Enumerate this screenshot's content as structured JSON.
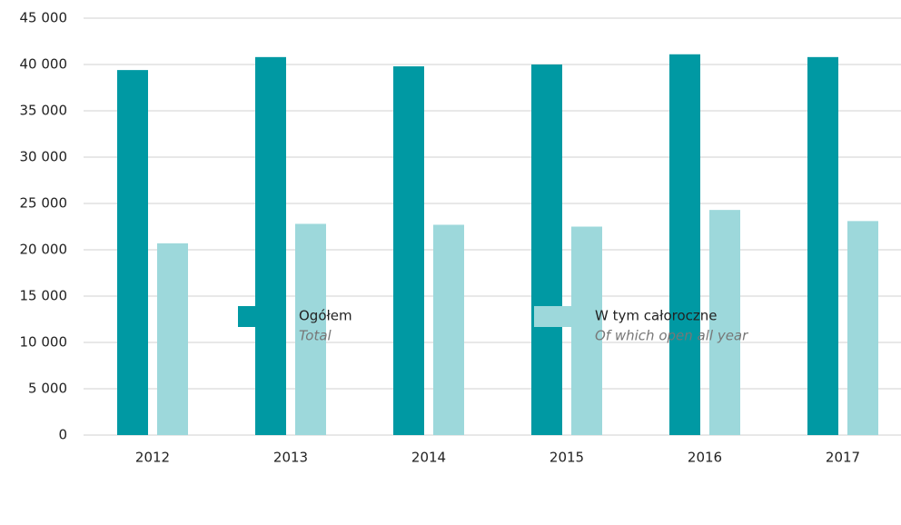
{
  "chart_data": {
    "type": "bar",
    "categories": [
      "2012",
      "2013",
      "2014",
      "2015",
      "2016",
      "2017"
    ],
    "series": [
      {
        "name": "Ogółem",
        "name_en": "Total",
        "color": "#0099a3",
        "values": [
          39400,
          40800,
          39800,
          40000,
          41100,
          40800
        ]
      },
      {
        "name": "W tym całoroczne",
        "name_en": "Of which open all year",
        "color": "#9dd8db",
        "values": [
          20700,
          22800,
          22700,
          22500,
          24300,
          23100
        ]
      }
    ],
    "ylim": [
      0,
      45000
    ],
    "yticks": [
      0,
      {
        "value": 5000,
        "label": "5 000"
      },
      {
        "value": 10000,
        "label": "10 000"
      },
      {
        "value": 15000,
        "label": "15 000"
      },
      {
        "value": 20000,
        "label": "20 000"
      },
      {
        "value": 25000,
        "label": "25 000"
      },
      {
        "value": 30000,
        "label": "30 000"
      },
      {
        "value": 35000,
        "label": "35 000"
      },
      {
        "value": 40000,
        "label": "40 000"
      },
      {
        "value": 45000,
        "label": "45 000"
      }
    ],
    "grid": true
  }
}
